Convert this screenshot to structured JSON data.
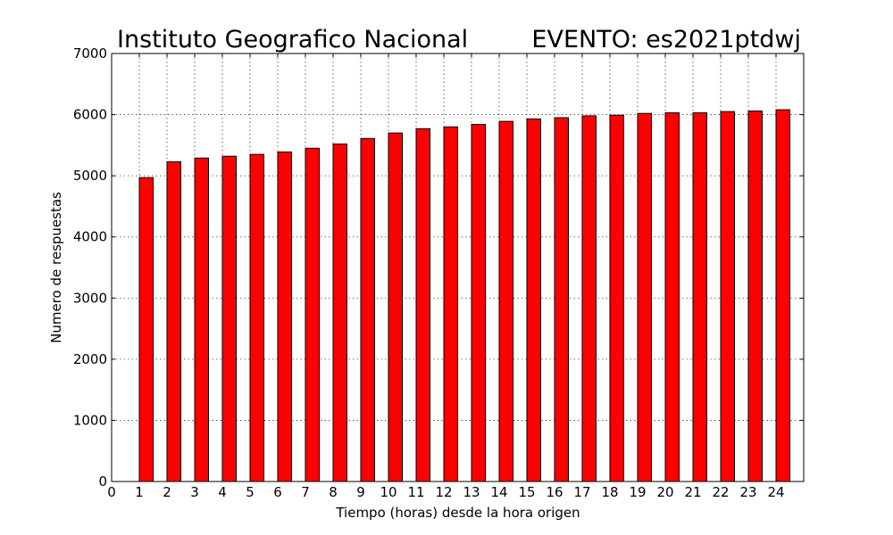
{
  "chart_data": {
    "type": "bar",
    "title_left": "Instituto Geografico Nacional",
    "title_right": "EVENTO: es2021ptdwj",
    "xlabel": "Tiempo (horas) desde la hora origen",
    "ylabel": "Numero de respuestas",
    "xlim": [
      0,
      25
    ],
    "ylim": [
      0,
      7000
    ],
    "xticks": [
      0,
      1,
      2,
      3,
      4,
      5,
      6,
      7,
      8,
      9,
      10,
      11,
      12,
      13,
      14,
      15,
      16,
      17,
      18,
      19,
      20,
      21,
      22,
      23,
      24
    ],
    "yticks": [
      0,
      1000,
      2000,
      3000,
      4000,
      5000,
      6000,
      7000
    ],
    "grid": true,
    "bar_color": "#ff0000",
    "categories": [
      1,
      2,
      3,
      4,
      5,
      6,
      7,
      8,
      9,
      10,
      11,
      12,
      13,
      14,
      15,
      16,
      17,
      18,
      19,
      20,
      21,
      22,
      23,
      24
    ],
    "values": [
      4970,
      5230,
      5290,
      5320,
      5350,
      5390,
      5450,
      5520,
      5610,
      5700,
      5770,
      5800,
      5840,
      5890,
      5930,
      5950,
      5980,
      5990,
      6020,
      6030,
      6030,
      6050,
      6060,
      6080
    ]
  }
}
